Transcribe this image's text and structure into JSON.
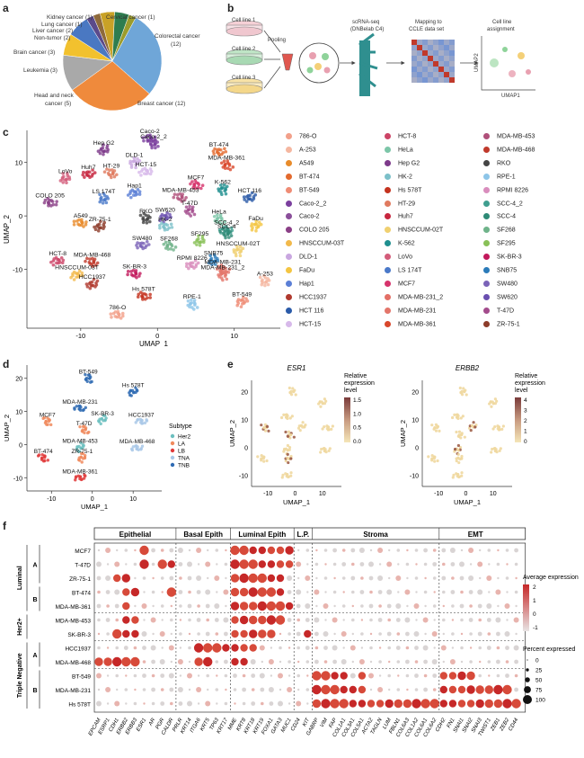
{
  "panel_labels": {
    "a": "a",
    "b": "b",
    "c": "c",
    "d": "d",
    "e": "e",
    "f": "f"
  },
  "panel_a": {
    "slices": [
      {
        "label": "Kidney cancer (1)",
        "value": 1,
        "color": "#5b4a8b"
      },
      {
        "label": "Lung cancer (1)",
        "value": 1,
        "color": "#8e6a3b"
      },
      {
        "label": "Liver cancer (2)",
        "value": 2,
        "color": "#c9a227"
      },
      {
        "label": "Non-tumor (2)",
        "value": 2,
        "color": "#2e7d4f"
      },
      {
        "label": "Cervical cancer (1)",
        "value": 1,
        "color": "#9c9c2c"
      },
      {
        "label": "Colorectal cancer (12)",
        "value": 12,
        "color": "#6fa6d8"
      },
      {
        "label": "Breast cancer (12)",
        "value": 12,
        "color": "#ef8a3c"
      },
      {
        "label": "Head and neck cancer (5)",
        "value": 5,
        "color": "#a9a9a9"
      },
      {
        "label": "Leukemia (3)",
        "value": 3,
        "color": "#f2c12e"
      },
      {
        "label": "Brain cancer (3)",
        "value": 3,
        "color": "#4a78c2"
      }
    ],
    "text": {
      "kidney": "Kidney cancer (1)",
      "cervical": "Cervical cancer (1)",
      "lung": "Lung cancer (1)",
      "liver": "Liver cancer (2)",
      "nontumor": "Non-tumor (2)",
      "colorectal1": "Colorectal cancer",
      "colorectal2": "(12)",
      "brain": "Brain cancer (3)",
      "leukemia": "Leukemia (3)",
      "hn1": "Head and neck",
      "hn2": "cancer (5)",
      "breast": "Breast cancer (12)"
    }
  },
  "panel_b": {
    "cell1": "Cell line 1",
    "cell2": "Cell line 2",
    "cell3": "Cell line 3",
    "pooling": "Pooling",
    "scrna1": "scRNA-seq",
    "scrna2": "(DNBelab C4)",
    "map1": "Mapping to",
    "map2": "CCLE data set",
    "assign1": "Cell line",
    "assign2": "assignment",
    "umap1": "UMAP1",
    "umap2": "UMAP2"
  },
  "panel_c": {
    "xlabel": "UMAP_1",
    "ylabel": "UMAP_2",
    "xticks": [
      "-10",
      "0",
      "10"
    ],
    "yticks": [
      "10",
      "0",
      "-10"
    ],
    "clusters": [
      {
        "name": "Caco-2",
        "x": -1,
        "y": 14.5,
        "color": "#7b3f9e"
      },
      {
        "name": "Caco-2_2",
        "x": -0.5,
        "y": 13.5,
        "color": "#7b3f9e"
      },
      {
        "name": "Hep G2",
        "x": -7,
        "y": 12.3,
        "color": "#7d3a8a"
      },
      {
        "name": "BT-474",
        "x": 8,
        "y": 12,
        "color": "#e36a2e"
      },
      {
        "name": "MDA-MB-361",
        "x": 9,
        "y": 9.5,
        "color": "#d9472b"
      },
      {
        "name": "DLD-1",
        "x": -3,
        "y": 10,
        "color": "#c9a7e0"
      },
      {
        "name": "HCT-15",
        "x": -1.5,
        "y": 8.3,
        "color": "#d7b9ea"
      },
      {
        "name": "HT-29",
        "x": -6,
        "y": 8,
        "color": "#e07a5f"
      },
      {
        "name": "LoVo",
        "x": -12,
        "y": 7,
        "color": "#d35c7a"
      },
      {
        "name": "Huh7",
        "x": -9,
        "y": 7.8,
        "color": "#c7263e"
      },
      {
        "name": "MCF7",
        "x": 5,
        "y": 5.8,
        "color": "#d6336c"
      },
      {
        "name": "K-562",
        "x": 8.5,
        "y": 5,
        "color": "#1f8f8f"
      },
      {
        "name": "Hap1",
        "x": -3,
        "y": 4.3,
        "color": "#5b7fd6"
      },
      {
        "name": "MDA-MB-453",
        "x": 3,
        "y": 3.5,
        "color": "#b0507a"
      },
      {
        "name": "LS 174T",
        "x": -7,
        "y": 3.2,
        "color": "#4a79c9"
      },
      {
        "name": "HCT 116",
        "x": 12,
        "y": 3.4,
        "color": "#2a5aa8"
      },
      {
        "name": "COLO 205",
        "x": -14,
        "y": 2.5,
        "color": "#8a3f86"
      },
      {
        "name": "T-47D",
        "x": 4.2,
        "y": 1,
        "color": "#a34b8c"
      },
      {
        "name": "SW620",
        "x": 1,
        "y": -0.2,
        "color": "#6a4fb0"
      },
      {
        "name": "A549",
        "x": -10,
        "y": -1.3,
        "color": "#e88b2a"
      },
      {
        "name": "RKO",
        "x": -1.5,
        "y": -0.5,
        "color": "#444"
      },
      {
        "name": "ZR-75-1",
        "x": -7.5,
        "y": -2,
        "color": "#8d3c2a"
      },
      {
        "name": "HK-2",
        "x": 1,
        "y": -2,
        "color": "#7cc0c9"
      },
      {
        "name": "HeLa",
        "x": 8,
        "y": -0.6,
        "color": "#7cc6a8"
      },
      {
        "name": "FaDu",
        "x": 12.8,
        "y": -1.8,
        "color": "#f4c542"
      },
      {
        "name": "SCC-4_2",
        "x": 9,
        "y": -2.6,
        "color": "#3f9e8f"
      },
      {
        "name": "SCC-4",
        "x": 9,
        "y": -3.3,
        "color": "#2e8a76"
      },
      {
        "name": "SF295",
        "x": 5.5,
        "y": -4.7,
        "color": "#88c057"
      },
      {
        "name": "SW480",
        "x": -2,
        "y": -5.5,
        "color": "#7a63b8"
      },
      {
        "name": "SF268",
        "x": 1.5,
        "y": -5.6,
        "color": "#6fb38a"
      },
      {
        "name": "HNSCCUM-02T",
        "x": 10.5,
        "y": -6.5,
        "color": "#f0d070"
      },
      {
        "name": "HCT-8",
        "x": -13,
        "y": -8.4,
        "color": "#cc4466"
      },
      {
        "name": "MDA-MB-468",
        "x": -8.5,
        "y": -8.6,
        "color": "#c0392b"
      },
      {
        "name": "SNB75",
        "x": 7.3,
        "y": -8.3,
        "color": "#2b7bb9"
      },
      {
        "name": "RPMI 8226",
        "x": 4.5,
        "y": -9.2,
        "color": "#d98dbd"
      },
      {
        "name": "MDA-MB-231",
        "x": 8.5,
        "y": -10,
        "color": "#e3756a"
      },
      {
        "name": "MDA-MB-231_2",
        "x": 8.5,
        "y": -11,
        "color": "#e3756a"
      },
      {
        "name": "HNSCCUM-03T",
        "x": -10.5,
        "y": -11,
        "color": "#f2b94b"
      },
      {
        "name": "SK-BR-3",
        "x": -3,
        "y": -10.8,
        "color": "#c2185b"
      },
      {
        "name": "A-253",
        "x": 14,
        "y": -12.2,
        "color": "#f5b7a0"
      },
      {
        "name": "HCC1937",
        "x": -8.5,
        "y": -12.8,
        "color": "#b03a2e"
      },
      {
        "name": "Hs 578T",
        "x": -1.8,
        "y": -15,
        "color": "#c4331f"
      },
      {
        "name": "RPE-1",
        "x": 4.5,
        "y": -16.5,
        "color": "#8dc5e8"
      },
      {
        "name": "BT-549",
        "x": 11,
        "y": -16,
        "color": "#ef8c75"
      },
      {
        "name": "786-O",
        "x": -5.2,
        "y": -18.5,
        "color": "#f2a08a"
      }
    ]
  },
  "legend_c": {
    "col1": [
      {
        "name": "786-O",
        "color": "#f2a08a"
      },
      {
        "name": "A-253",
        "color": "#f5b7a0"
      },
      {
        "name": "A549",
        "color": "#e88b2a"
      },
      {
        "name": "BT-474",
        "color": "#e36a2e"
      },
      {
        "name": "BT-549",
        "color": "#ef8c75"
      },
      {
        "name": "Caco-2_2",
        "color": "#7b3f9e"
      },
      {
        "name": "Caco-2",
        "color": "#8a4f9a"
      },
      {
        "name": "COLO 205",
        "color": "#8a3f86"
      },
      {
        "name": "HNSCCUM-03T",
        "color": "#f2b94b"
      },
      {
        "name": "DLD-1",
        "color": "#c9a7e0"
      },
      {
        "name": "FaDu",
        "color": "#f4c542"
      },
      {
        "name": "Hap1",
        "color": "#5b7fd6"
      },
      {
        "name": "HCC1937",
        "color": "#b03a2e"
      },
      {
        "name": "HCT 116",
        "color": "#2a5aa8"
      },
      {
        "name": "HCT-15",
        "color": "#d7b9ea"
      }
    ],
    "col2": [
      {
        "name": "HCT-8",
        "color": "#cc4466"
      },
      {
        "name": "HeLa",
        "color": "#7cc6a8"
      },
      {
        "name": "Hep G2",
        "color": "#7d3a8a"
      },
      {
        "name": "HK-2",
        "color": "#7cc0c9"
      },
      {
        "name": "Hs 578T",
        "color": "#c4331f"
      },
      {
        "name": "HT-29",
        "color": "#e07a5f"
      },
      {
        "name": "Huh7",
        "color": "#c7263e"
      },
      {
        "name": "HNSCCUM-02T",
        "color": "#f0d070"
      },
      {
        "name": "K-562",
        "color": "#1f8f8f"
      },
      {
        "name": "LoVo",
        "color": "#d35c7a"
      },
      {
        "name": "LS 174T",
        "color": "#4a79c9"
      },
      {
        "name": "MCF7",
        "color": "#d6336c"
      },
      {
        "name": "MDA-MB-231_2",
        "color": "#e36f66"
      },
      {
        "name": "MDA-MB-231",
        "color": "#e3756a"
      },
      {
        "name": "MDA-MB-361",
        "color": "#d9472b"
      }
    ],
    "col3": [
      {
        "name": "MDA-MB-453",
        "color": "#b0507a"
      },
      {
        "name": "MDA-MB-468",
        "color": "#c0392b"
      },
      {
        "name": "RKO",
        "color": "#444444"
      },
      {
        "name": "RPE-1",
        "color": "#8dc5e8"
      },
      {
        "name": "RPMI 8226",
        "color": "#d98dbd"
      },
      {
        "name": "SCC-4_2",
        "color": "#3f9e8f"
      },
      {
        "name": "SCC-4",
        "color": "#2e8a76"
      },
      {
        "name": "SF268",
        "color": "#6fb38a"
      },
      {
        "name": "SF295",
        "color": "#88c057"
      },
      {
        "name": "SK-BR-3",
        "color": "#c2185b"
      },
      {
        "name": "SNB75",
        "color": "#2b7bb9"
      },
      {
        "name": "SW480",
        "color": "#7a63b8"
      },
      {
        "name": "SW620",
        "color": "#6a4fb0"
      },
      {
        "name": "T-47D",
        "color": "#a34b8c"
      },
      {
        "name": "ZR-75-1",
        "color": "#8d3c2a"
      }
    ]
  },
  "panel_d": {
    "xlabel": "UMAP_1",
    "ylabel": "UMAP_2",
    "xticks": [
      "-10",
      "0",
      "10"
    ],
    "yticks": [
      "20",
      "10",
      "0",
      "-10"
    ],
    "legend_title": "Subtype",
    "subtypes": [
      {
        "name": "Her2",
        "color": "#6cc0c0"
      },
      {
        "name": "LA",
        "color": "#f08a5d"
      },
      {
        "name": "LB",
        "color": "#e03b3b"
      },
      {
        "name": "TNA",
        "color": "#a9c8e8"
      },
      {
        "name": "TNB",
        "color": "#2f6bb3"
      }
    ],
    "clusters": [
      {
        "name": "BT-549",
        "x": -1,
        "y": 20,
        "sub": "TNB"
      },
      {
        "name": "Hs 578T",
        "x": 10,
        "y": 16,
        "sub": "TNB"
      },
      {
        "name": "MDA-MB-231",
        "x": -3,
        "y": 11,
        "sub": "TNB"
      },
      {
        "name": "MCF7",
        "x": -11,
        "y": 7,
        "sub": "LA"
      },
      {
        "name": "SK-BR-3",
        "x": 2.5,
        "y": 7.5,
        "sub": "Her2"
      },
      {
        "name": "HCC1937",
        "x": 12,
        "y": 7,
        "sub": "TNA"
      },
      {
        "name": "T-47D",
        "x": -2,
        "y": 4.5,
        "sub": "LA"
      },
      {
        "name": "MDA-MB-453",
        "x": -3,
        "y": -0.8,
        "sub": "Her2"
      },
      {
        "name": "MDA-MB-468",
        "x": 11,
        "y": -1,
        "sub": "TNA"
      },
      {
        "name": "BT-474",
        "x": -12,
        "y": -4,
        "sub": "LB"
      },
      {
        "name": "ZR-75-1",
        "x": -2.5,
        "y": -4,
        "sub": "LA"
      },
      {
        "name": "MDA-MB-361",
        "x": -3,
        "y": -10,
        "sub": "LB"
      }
    ]
  },
  "panel_e": {
    "plots": [
      {
        "title": "ESR1",
        "legend1": "Relative",
        "legend2": "expression",
        "legend3": "level",
        "ticks": [
          "1.5",
          "1.0",
          "0.5",
          "0.0"
        ],
        "xlabel": "UMAP_1",
        "ylabel": "UMAP_2",
        "xticks": [
          "-10",
          "0",
          "10"
        ],
        "yticks": [
          "20",
          "10",
          "0",
          "-10"
        ]
      },
      {
        "title": "ERBB2",
        "legend1": "Relative",
        "legend2": "expression",
        "legend3": "level",
        "ticks": [
          "4",
          "3",
          "2",
          "1",
          "0"
        ],
        "xlabel": "UMAP_1",
        "ylabel": "UMAP_2",
        "xticks": [
          "-10",
          "0",
          "10"
        ],
        "yticks": [
          "20",
          "10",
          "0",
          "-10"
        ]
      }
    ]
  },
  "panel_f": {
    "groups": [
      {
        "name": "Epithelial",
        "span": [
          0,
          9
        ]
      },
      {
        "name": "Basal Epith",
        "span": [
          9,
          15
        ]
      },
      {
        "name": "Luminal Epith",
        "span": [
          15,
          22
        ]
      },
      {
        "name": "L.P.",
        "span": [
          22,
          24
        ]
      },
      {
        "name": "Stroma",
        "span": [
          24,
          38
        ]
      },
      {
        "name": "EMT",
        "span": [
          38,
          46
        ]
      }
    ],
    "genes": [
      "EPCAM",
      "ESRP1",
      "CDH1",
      "ERBB2",
      "ERBB3",
      "ESR1",
      "AR",
      "PGR",
      "CALDR",
      "PRLR",
      "KRT14",
      "ITGA6",
      "KRT5",
      "TP63",
      "KRT17",
      "MME",
      "KRT8",
      "KRT18",
      "KRT19",
      "FOXA1",
      "GATA3",
      "MUC1",
      "CD24",
      "KIT",
      "GABRP",
      "VIM",
      "FAP",
      "COL1A1",
      "COL3A1",
      "COL5A1",
      "ACTA2",
      "TAGLN",
      "LUM",
      "FBLN1",
      "COL6A3",
      "COL1A2",
      "COL6A1",
      "COL6A2",
      "CDH2",
      "FN1",
      "SNAI1",
      "SNAI2",
      "SNAI3",
      "TWIST1",
      "ZEB1",
      "ZEB2",
      "CD44"
    ],
    "rows": [
      "MCF7",
      "T-47D",
      "ZR-75-1",
      "BT-474",
      "MDA-MB-361",
      "MDA-MB-453",
      "SK-BR-3",
      "HCC1937",
      "MDA-MB-468",
      "BT-549",
      "MDA-MB-231",
      "Hs 578T"
    ],
    "side_groups": [
      {
        "label": "Luminal",
        "sub": [
          {
            "label": "A",
            "rows": [
              0,
              3
            ]
          },
          {
            "label": "B",
            "rows": [
              3,
              5
            ]
          }
        ]
      },
      {
        "label": "Her2+",
        "sub": []
      },
      {
        "label": "Triple Negative",
        "sub": [
          {
            "label": "A",
            "rows": [
              7,
              9
            ]
          },
          {
            "label": "B",
            "rows": [
              9,
              12
            ]
          }
        ]
      }
    ],
    "legend_avg": "Average expression",
    "avg_ticks": [
      "2",
      "1",
      "0",
      "-1"
    ],
    "legend_pct": "Percent expressed",
    "pct_ticks": [
      "0",
      "25",
      "50",
      "75",
      "100"
    ]
  }
}
